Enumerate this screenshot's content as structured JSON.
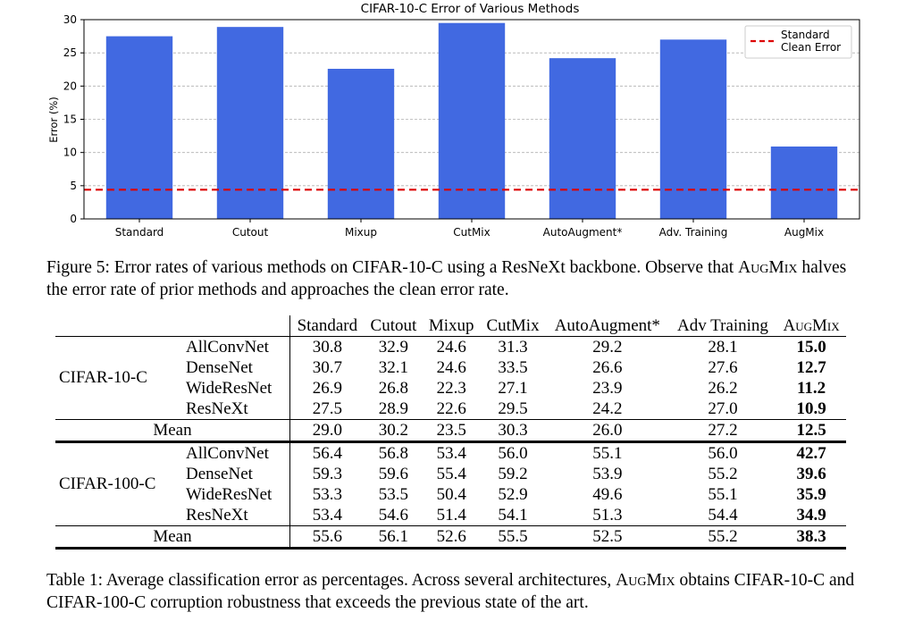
{
  "chart_data": {
    "type": "bar",
    "title": "CIFAR-10-C Error of Various Methods",
    "xlabel": "",
    "ylabel": "Error (%)",
    "categories": [
      "Standard",
      "Cutout",
      "Mixup",
      "CutMix",
      "AutoAugment*",
      "Adv. Training",
      "AugMix"
    ],
    "values": [
      27.5,
      28.9,
      22.6,
      29.5,
      24.2,
      27.0,
      10.9
    ],
    "ylim": [
      0,
      30
    ],
    "yticks": [
      "0",
      "5",
      "10",
      "15",
      "20",
      "25",
      "30"
    ],
    "bar_color": "#4169e1",
    "grid": true,
    "reference_line": {
      "label_line1": "Standard",
      "label_line2": "Clean Error",
      "value": 4.4,
      "color": "#dd0000"
    },
    "legend_position": "top-right"
  },
  "figure_caption": {
    "prefix": "Figure 5: Error rates of various methods on CIFAR-10-C using a ResNeXt backbone. Observe that",
    "augmix": "AugMix",
    "suffix": " halves the error rate of prior methods and approaches the clean error rate."
  },
  "table": {
    "columns": [
      "Standard",
      "Cutout",
      "Mixup",
      "CutMix",
      "AutoAugment*",
      "Adv Training",
      "AugMix"
    ],
    "groups": [
      {
        "dataset": "CIFAR-10-C",
        "rows": [
          {
            "arch": "AllConvNet",
            "values": [
              "30.8",
              "32.9",
              "24.6",
              "31.3",
              "29.2",
              "28.1"
            ],
            "augmix": "15.0"
          },
          {
            "arch": "DenseNet",
            "values": [
              "30.7",
              "32.1",
              "24.6",
              "33.5",
              "26.6",
              "27.6"
            ],
            "augmix": "12.7"
          },
          {
            "arch": "WideResNet",
            "values": [
              "26.9",
              "26.8",
              "22.3",
              "27.1",
              "23.9",
              "26.2"
            ],
            "augmix": "11.2"
          },
          {
            "arch": "ResNeXt",
            "values": [
              "27.5",
              "28.9",
              "22.6",
              "29.5",
              "24.2",
              "27.0"
            ],
            "augmix": "10.9"
          }
        ],
        "mean": {
          "label": "Mean",
          "values": [
            "29.0",
            "30.2",
            "23.5",
            "30.3",
            "26.0",
            "27.2"
          ],
          "augmix": "12.5"
        }
      },
      {
        "dataset": "CIFAR-100-C",
        "rows": [
          {
            "arch": "AllConvNet",
            "values": [
              "56.4",
              "56.8",
              "53.4",
              "56.0",
              "55.1",
              "56.0"
            ],
            "augmix": "42.7"
          },
          {
            "arch": "DenseNet",
            "values": [
              "59.3",
              "59.6",
              "55.4",
              "59.2",
              "53.9",
              "55.2"
            ],
            "augmix": "39.6"
          },
          {
            "arch": "WideResNet",
            "values": [
              "53.3",
              "53.5",
              "50.4",
              "52.9",
              "49.6",
              "55.1"
            ],
            "augmix": "35.9"
          },
          {
            "arch": "ResNeXt",
            "values": [
              "53.4",
              "54.6",
              "51.4",
              "54.1",
              "51.3",
              "54.4"
            ],
            "augmix": "34.9"
          }
        ],
        "mean": {
          "label": "Mean",
          "values": [
            "55.6",
            "56.1",
            "52.6",
            "55.5",
            "52.5",
            "55.2"
          ],
          "augmix": "38.3"
        }
      }
    ]
  },
  "table_caption": {
    "prefix": "Table 1: Average classification error as percentages. Across several architectures, ",
    "augmix": "AugMix",
    "suffix": " obtains CIFAR-10-C and CIFAR-100-C corruption robustness that exceeds the previous state of the art."
  }
}
